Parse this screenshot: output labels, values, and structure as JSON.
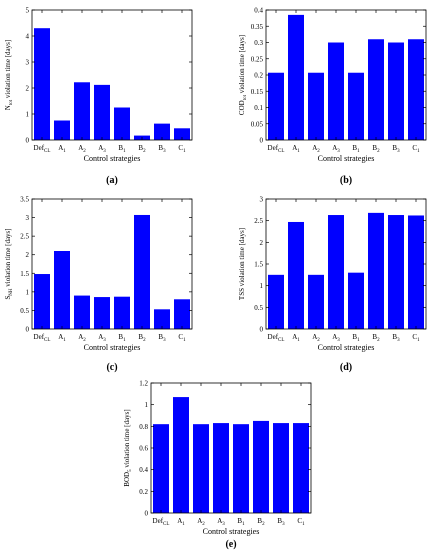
{
  "colors": {
    "bar": "#0000ff",
    "axis": "#000000",
    "background": "#ffffff"
  },
  "chart_data": [
    {
      "type": "bar",
      "panel_label": "(a)",
      "categories": [
        "Def",
        "A",
        "A",
        "A",
        "B",
        "B",
        "B",
        "C"
      ],
      "category_subscripts": [
        "CL",
        "1",
        "2",
        "3",
        "1",
        "2",
        "3",
        "1"
      ],
      "values": [
        4.3,
        0.75,
        2.22,
        2.12,
        1.25,
        0.17,
        0.63,
        0.45
      ],
      "ylabel": "N",
      "ylabel_subscript": "tot",
      "ylabel_suffix": " violation time [days]",
      "xlabel": "Control strategies",
      "ylim": [
        0,
        5
      ],
      "yticks": [
        0,
        1,
        2,
        3,
        4,
        5
      ],
      "ytick_labels": [
        "0",
        "1",
        "2",
        "3",
        "4",
        "5"
      ],
      "grid": false
    },
    {
      "type": "bar",
      "panel_label": "(b)",
      "categories": [
        "Def",
        "A",
        "A",
        "A",
        "B",
        "B",
        "B",
        "C"
      ],
      "category_subscripts": [
        "CL",
        "1",
        "2",
        "3",
        "1",
        "2",
        "3",
        "1"
      ],
      "values": [
        0.207,
        0.385,
        0.207,
        0.3,
        0.207,
        0.31,
        0.3,
        0.31
      ],
      "ylabel": "COD",
      "ylabel_subscript": "tot",
      "ylabel_suffix": " violation time [days]",
      "xlabel": "Control strategies",
      "ylim": [
        0,
        0.4
      ],
      "yticks": [
        0,
        0.05,
        0.1,
        0.15,
        0.2,
        0.25,
        0.3,
        0.35,
        0.4
      ],
      "ytick_labels": [
        "0",
        "0.05",
        "0.1",
        "0.15",
        "0.2",
        "0.25",
        "0.3",
        "0.35",
        "0.4"
      ],
      "grid": false
    },
    {
      "type": "bar",
      "panel_label": "(c)",
      "categories": [
        "Def",
        "A",
        "A",
        "A",
        "B",
        "B",
        "B",
        "C"
      ],
      "category_subscripts": [
        "CL",
        "1",
        "2",
        "3",
        "1",
        "2",
        "3",
        "1"
      ],
      "values": [
        1.48,
        2.1,
        0.9,
        0.86,
        0.87,
        3.07,
        0.53,
        0.8
      ],
      "ylabel": "S",
      "ylabel_subscript": "NH",
      "ylabel_suffix": " violation time [days]",
      "xlabel": "Control strategies",
      "ylim": [
        0,
        3.5
      ],
      "yticks": [
        0,
        0.5,
        1,
        1.5,
        2,
        2.5,
        3,
        3.5
      ],
      "ytick_labels": [
        "0",
        "0.5",
        "1",
        "1.5",
        "2",
        "2.5",
        "3",
        "3.5"
      ],
      "grid": false
    },
    {
      "type": "bar",
      "panel_label": "(d)",
      "categories": [
        "Def",
        "A",
        "A",
        "A",
        "B",
        "B",
        "B",
        "C"
      ],
      "category_subscripts": [
        "CL",
        "1",
        "2",
        "3",
        "1",
        "2",
        "3",
        "1"
      ],
      "values": [
        1.25,
        2.47,
        1.25,
        2.63,
        1.3,
        2.68,
        2.63,
        2.62
      ],
      "ylabel": "TSS violation time [days]",
      "ylabel_subscript": "",
      "ylabel_suffix": "",
      "xlabel": "Control strategies",
      "ylim": [
        0,
        3
      ],
      "yticks": [
        0,
        0.5,
        1,
        1.5,
        2,
        2.5,
        3
      ],
      "ytick_labels": [
        "0",
        "0.5",
        "1",
        "1.5",
        "2",
        "2.5",
        "3"
      ],
      "grid": false
    },
    {
      "type": "bar",
      "panel_label": "(e)",
      "categories": [
        "Def",
        "A",
        "A",
        "A",
        "B",
        "B",
        "B",
        "C"
      ],
      "category_subscripts": [
        "CL",
        "1",
        "2",
        "3",
        "1",
        "2",
        "3",
        "1"
      ],
      "values": [
        0.82,
        1.07,
        0.82,
        0.83,
        0.82,
        0.85,
        0.83,
        0.83
      ],
      "ylabel": "BOD",
      "ylabel_subscript": "5",
      "ylabel_suffix": " violation time [days]",
      "xlabel": "Control strategies",
      "ylim": [
        0,
        1.2
      ],
      "yticks": [
        0,
        0.2,
        0.4,
        0.6,
        0.8,
        1,
        1.2
      ],
      "ytick_labels": [
        "0",
        "0.2",
        "0.4",
        "0.6",
        "0.8",
        "1",
        "1.2"
      ],
      "grid": false
    }
  ]
}
